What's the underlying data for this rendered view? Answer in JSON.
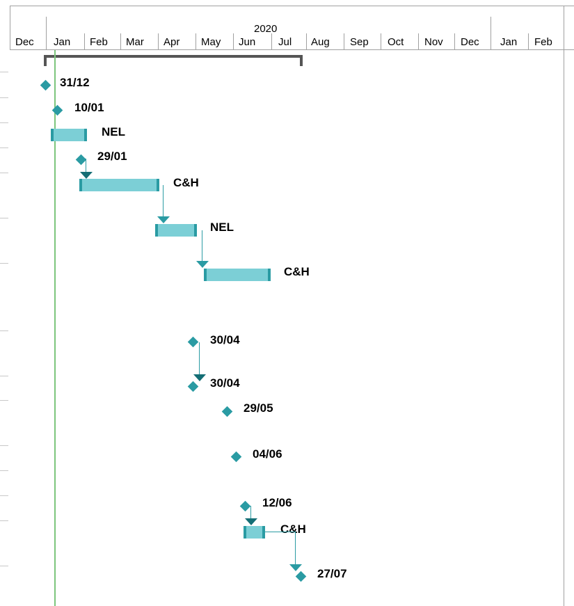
{
  "timescale": {
    "year": "2020",
    "months": [
      "Dec",
      "Jan",
      "Feb",
      "Mar",
      "Apr",
      "May",
      "Jun",
      "Jul",
      "Aug",
      "Sep",
      "Oct",
      "Nov",
      "Dec",
      "Jan",
      "Feb"
    ]
  },
  "rows": [
    {
      "kind": "milestone",
      "label": "31/12"
    },
    {
      "kind": "milestone",
      "label": "10/01"
    },
    {
      "kind": "task",
      "label": "NEL"
    },
    {
      "kind": "milestone",
      "label": "29/01"
    },
    {
      "kind": "task",
      "label": "C&H"
    },
    {
      "kind": "task",
      "label": "NEL"
    },
    {
      "kind": "task",
      "label": "C&H"
    },
    {
      "kind": "milestone",
      "label": "30/04"
    },
    {
      "kind": "milestone",
      "label": "30/04"
    },
    {
      "kind": "milestone",
      "label": "29/05"
    },
    {
      "kind": "milestone",
      "label": "04/06"
    },
    {
      "kind": "milestone",
      "label": "12/06"
    },
    {
      "kind": "task",
      "label": "C&H"
    },
    {
      "kind": "milestone",
      "label": "27/07"
    }
  ],
  "colors": {
    "task_fill": "#7ccfd6",
    "task_edge": "#2a9ba3",
    "milestone": "#2a9ba3",
    "summary": "#555555",
    "today_line": "#7cc57c"
  }
}
